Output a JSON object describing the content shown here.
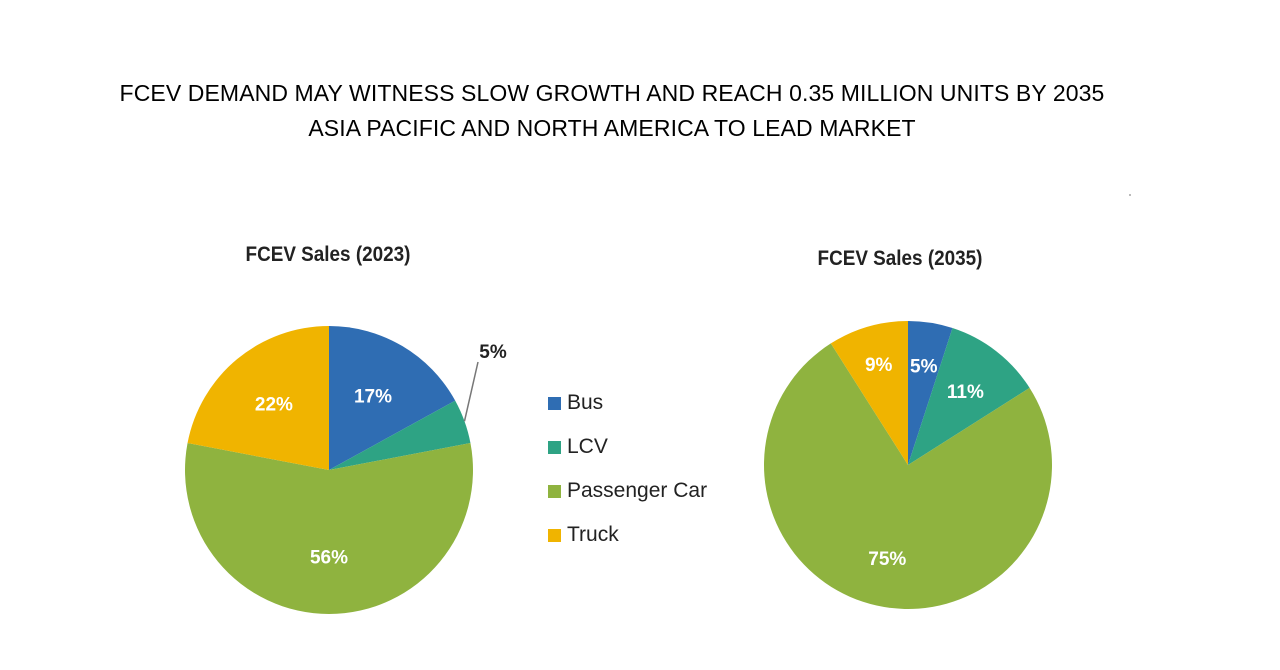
{
  "headline": {
    "line1": "FCEV DEMAND MAY WITNESS SLOW GROWTH AND REACH 0.35 MILLION UNITS BY 2035",
    "line2": "ASIA PACIFIC AND NORTH AMERICA TO LEAD MARKET"
  },
  "colors": {
    "Bus": "#2f6db3",
    "LCV": "#2ea384",
    "Passenger Car": "#8fb33f",
    "Truck": "#f0b400"
  },
  "legend": [
    "Bus",
    "LCV",
    "Passenger Car",
    "Truck"
  ],
  "chart_data": [
    {
      "type": "pie",
      "title": "FCEV Sales (2023)",
      "categories": [
        "Bus",
        "LCV",
        "Passenger Car",
        "Truck"
      ],
      "values": [
        17,
        5,
        56,
        22
      ],
      "labels": [
        "17%",
        "5%",
        "56%",
        "22%"
      ]
    },
    {
      "type": "pie",
      "title": "FCEV Sales (2035)",
      "categories": [
        "Bus",
        "LCV",
        "Passenger Car",
        "Truck"
      ],
      "values": [
        5,
        11,
        75,
        9
      ],
      "labels": [
        "5%",
        "11%",
        "75%",
        "9%"
      ]
    }
  ]
}
